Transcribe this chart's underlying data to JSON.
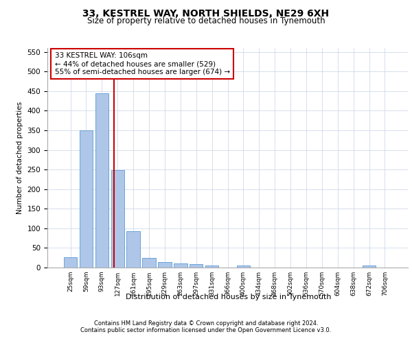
{
  "title1": "33, KESTREL WAY, NORTH SHIELDS, NE29 6XH",
  "title2": "Size of property relative to detached houses in Tynemouth",
  "xlabel": "Distribution of detached houses by size in Tynemouth",
  "ylabel": "Number of detached properties",
  "categories": [
    "25sqm",
    "59sqm",
    "93sqm",
    "127sqm",
    "161sqm",
    "195sqm",
    "229sqm",
    "263sqm",
    "297sqm",
    "331sqm",
    "366sqm",
    "400sqm",
    "434sqm",
    "468sqm",
    "502sqm",
    "536sqm",
    "570sqm",
    "604sqm",
    "638sqm",
    "672sqm",
    "706sqm"
  ],
  "values": [
    27,
    350,
    445,
    248,
    93,
    25,
    14,
    11,
    8,
    6,
    0,
    5,
    0,
    0,
    0,
    0,
    0,
    0,
    0,
    5,
    0
  ],
  "bar_color": "#aec6e8",
  "bar_edge_color": "#5a9bd4",
  "vline_x": 2.78,
  "vline_color": "#cc0000",
  "annotation_text": "33 KESTREL WAY: 106sqm\n← 44% of detached houses are smaller (529)\n55% of semi-detached houses are larger (674) →",
  "annotation_box_color": "#ffffff",
  "annotation_box_edgecolor": "#cc0000",
  "ylim": [
    0,
    560
  ],
  "yticks": [
    0,
    50,
    100,
    150,
    200,
    250,
    300,
    350,
    400,
    450,
    500,
    550
  ],
  "footer1": "Contains HM Land Registry data © Crown copyright and database right 2024.",
  "footer2": "Contains public sector information licensed under the Open Government Licence v3.0.",
  "bg_color": "#ffffff",
  "grid_color": "#d0d8e8"
}
